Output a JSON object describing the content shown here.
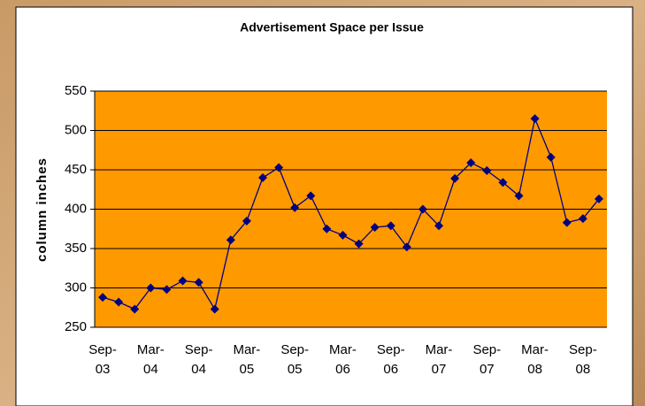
{
  "chart_data": {
    "type": "line",
    "title": "Advertisement Space per Issue",
    "y_label": "column inches",
    "categories": [
      "Sep-03",
      null,
      null,
      "Mar-04",
      null,
      null,
      "Sep-04",
      null,
      null,
      "Mar-05",
      null,
      null,
      "Sep-05",
      null,
      null,
      "Mar-06",
      null,
      null,
      "Sep-06",
      null,
      null,
      "Mar-07",
      null,
      null,
      "Sep-07",
      null,
      null,
      "Mar-08",
      null,
      null,
      "Sep-08",
      null
    ],
    "series": [
      {
        "color": "#000080",
        "values": [
          288,
          282,
          273,
          300,
          298,
          309,
          307,
          273,
          361,
          385,
          440,
          453,
          402,
          417,
          375,
          367,
          356,
          377,
          379,
          352,
          400,
          379,
          439,
          459,
          449,
          434,
          417,
          515,
          466,
          383,
          388,
          413
        ]
      }
    ],
    "ylim": [
      250,
      550
    ],
    "yticks": [
      250,
      300,
      350,
      400,
      450,
      500,
      550
    ],
    "grid": true,
    "plot_background": "#ff9900"
  }
}
